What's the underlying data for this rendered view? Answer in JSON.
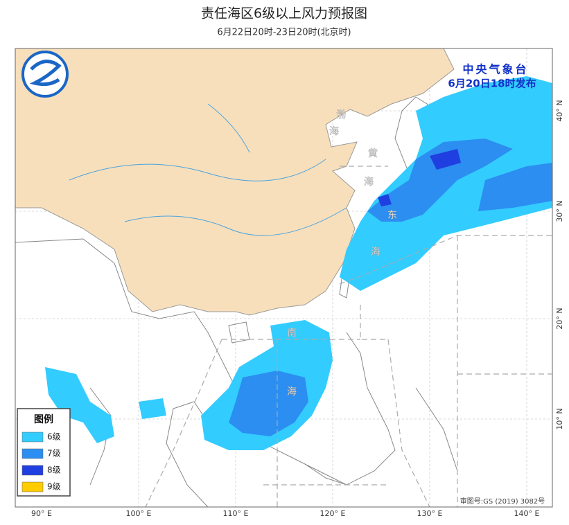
{
  "header": {
    "title": "责任海区6级以上风力预报图",
    "subtitle": "6月22日20时-23日20时(北京时)"
  },
  "issuer": {
    "name": "中央气象台",
    "time": "6月20日18时发布"
  },
  "legend": {
    "title": "图例",
    "items": [
      {
        "label": "6级",
        "color": "#33ccff"
      },
      {
        "label": "7级",
        "color": "#2b8ef0"
      },
      {
        "label": "8级",
        "color": "#1f3fe0"
      },
      {
        "label": "9级",
        "color": "#ffcc00"
      }
    ]
  },
  "longitude_labels": [
    "90° E",
    "100° E",
    "110° E",
    "120° E",
    "130° E",
    "140° E"
  ],
  "latitude_labels": [
    "40° N",
    "30° N",
    "20° N",
    "10° N"
  ],
  "sea_labels": [
    "渤",
    "海",
    "黄",
    "海",
    "东",
    "海",
    "南",
    "海"
  ],
  "map_number": "审图号:GS (2019) 3082号"
}
